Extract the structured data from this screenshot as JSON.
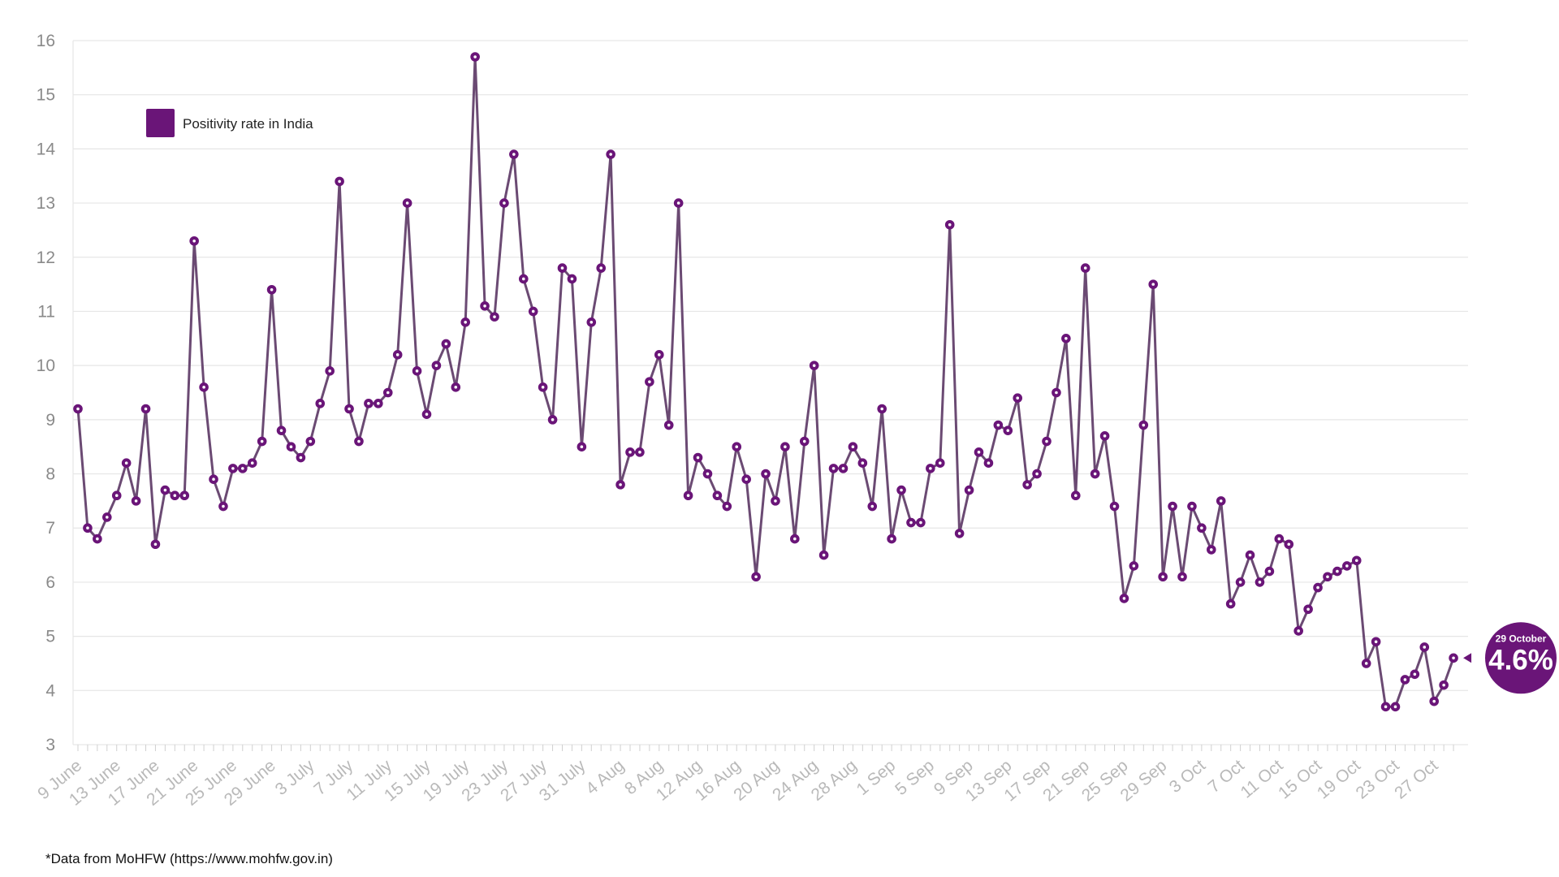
{
  "colors": {
    "line": "#6b4a73",
    "marker": "#6a1578",
    "legend_swatch": "#6a1578",
    "callout": "#6a1578",
    "grid": "#e6e6e6"
  },
  "legend": {
    "label": "Positivity rate in India"
  },
  "callout": {
    "date": "29 October",
    "value": "4.6%"
  },
  "footnote": "*Data from MoHFW (https://www.mohfw.gov.in)",
  "chart_data": {
    "type": "line",
    "title": "",
    "xlabel": "",
    "ylabel": "",
    "ylim": [
      3,
      16
    ],
    "yticks": [
      3,
      4,
      5,
      6,
      7,
      8,
      9,
      10,
      11,
      12,
      13,
      14,
      15,
      16
    ],
    "grid": true,
    "legend_position": "top-left",
    "x_start": "9 June",
    "x_end": "29 October",
    "xtick_labels": [
      "9 June",
      "13 June",
      "17 June",
      "21 June",
      "25 June",
      "29 June",
      "3 July",
      "7 July",
      "11 July",
      "15 July",
      "19 July",
      "23 July",
      "27 July",
      "31 July",
      "4 Aug",
      "8 Aug",
      "12 Aug",
      "16 Aug",
      "20 Aug",
      "24 Aug",
      "28 Aug",
      "1 Sep",
      "5 Sep",
      "9 Sep",
      "13 Sep",
      "17 Sep",
      "21 Sep",
      "25 Sep",
      "29 Sep",
      "3 Oct",
      "7 Oct",
      "11 Oct",
      "15 Oct",
      "19 Oct",
      "23 Oct",
      "27 Oct"
    ],
    "series": [
      {
        "name": "Positivity rate in India",
        "values": [
          9.2,
          7.0,
          6.8,
          7.2,
          7.6,
          8.2,
          7.5,
          9.2,
          6.7,
          7.7,
          7.6,
          7.6,
          12.3,
          9.6,
          7.9,
          7.4,
          8.1,
          8.1,
          8.2,
          8.6,
          11.4,
          8.8,
          8.5,
          8.3,
          8.6,
          9.3,
          9.9,
          13.4,
          9.2,
          8.6,
          9.3,
          9.3,
          9.5,
          10.2,
          13.0,
          9.9,
          9.1,
          10.0,
          10.4,
          9.6,
          10.8,
          15.7,
          11.1,
          10.9,
          13.0,
          13.9,
          11.6,
          11.0,
          9.6,
          9.0,
          11.8,
          11.6,
          8.5,
          10.8,
          11.8,
          13.9,
          7.8,
          8.4,
          8.4,
          9.7,
          10.2,
          8.9,
          13.0,
          7.6,
          8.3,
          8.0,
          7.6,
          7.4,
          8.5,
          7.9,
          6.1,
          8.0,
          7.5,
          8.5,
          6.8,
          8.6,
          10.0,
          6.5,
          8.1,
          8.1,
          8.5,
          8.2,
          7.4,
          9.2,
          6.8,
          7.7,
          7.1,
          7.1,
          8.1,
          8.2,
          12.6,
          6.9,
          7.7,
          8.4,
          8.2,
          8.9,
          8.8,
          9.4,
          7.8,
          8.0,
          8.6,
          9.5,
          10.5,
          7.6,
          11.8,
          8.0,
          8.7,
          7.4,
          5.7,
          6.3,
          8.9,
          11.5,
          6.1,
          7.4,
          6.1,
          7.4,
          7.0,
          6.6,
          7.5,
          5.6,
          6.0,
          6.5,
          6.0,
          6.2,
          6.8,
          6.7,
          5.1,
          5.5,
          5.9,
          6.1,
          6.2,
          6.3,
          6.4,
          4.5,
          4.9,
          3.7,
          3.7,
          4.2,
          4.3,
          4.8,
          3.8,
          4.1,
          4.6
        ]
      }
    ]
  }
}
